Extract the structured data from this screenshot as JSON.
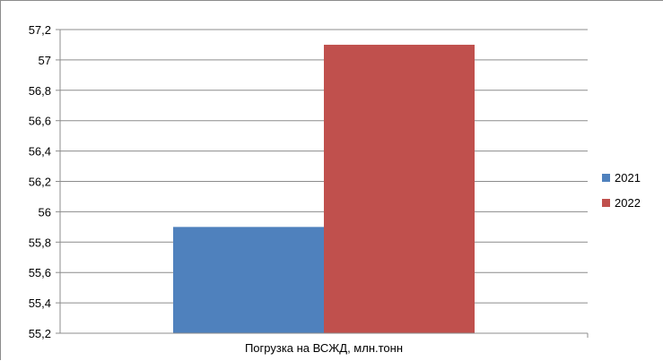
{
  "chart_data": {
    "type": "bar",
    "title": "",
    "xlabel": "",
    "ylabel": "",
    "categories": [
      "Погрузка на ВСЖД, млн.тонн"
    ],
    "series": [
      {
        "name": "2021",
        "values": [
          55.9
        ],
        "color": "#4f81bd"
      },
      {
        "name": "2022",
        "values": [
          57.1
        ],
        "color": "#c0504d"
      }
    ],
    "ylim": [
      55.2,
      57.2
    ],
    "yticks": [
      "55,2",
      "55,4",
      "55,6",
      "55,8",
      "56",
      "56,2",
      "56,4",
      "56,6",
      "56,8",
      "57",
      "57,2"
    ],
    "grid": true,
    "legend_position": "right",
    "gridline_color": "#8c8c8c"
  }
}
